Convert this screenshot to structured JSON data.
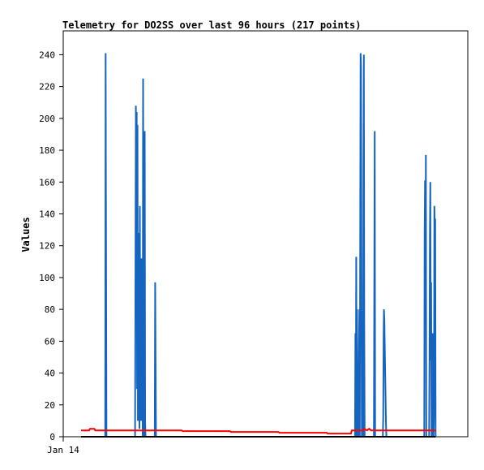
{
  "chart_data": {
    "type": "line",
    "title": "Telemetry for DO2SS over last 96 hours (217 points)",
    "xlabel": "",
    "ylabel": "Values",
    "x_tick_labels": [
      "Jan 14"
    ],
    "y_ticks": [
      0,
      20,
      40,
      60,
      80,
      100,
      120,
      140,
      160,
      180,
      200,
      220,
      240
    ],
    "ylim": [
      0,
      255
    ],
    "xlim": [
      0,
      96
    ],
    "grid": false,
    "legend": "none",
    "series": [
      {
        "color": "#1565c0",
        "style": "spikes",
        "points": [
          [
            6.0,
            0
          ],
          [
            6.1,
            241
          ],
          [
            6.2,
            120
          ],
          [
            6.3,
            0
          ],
          [
            13.4,
            0
          ],
          [
            13.5,
            105
          ],
          [
            13.6,
            208
          ],
          [
            13.7,
            95
          ],
          [
            13.8,
            204
          ],
          [
            13.9,
            30
          ],
          [
            14.0,
            196
          ],
          [
            14.1,
            10
          ],
          [
            14.2,
            128
          ],
          [
            14.3,
            20
          ],
          [
            14.4,
            112
          ],
          [
            14.5,
            5
          ],
          [
            14.6,
            145
          ],
          [
            14.7,
            40
          ],
          [
            14.8,
            112
          ],
          [
            14.9,
            10
          ],
          [
            15.0,
            96
          ],
          [
            15.1,
            20
          ],
          [
            15.2,
            112
          ],
          [
            15.3,
            0
          ],
          [
            15.4,
            225
          ],
          [
            15.5,
            96
          ],
          [
            15.6,
            112
          ],
          [
            15.7,
            0
          ],
          [
            15.8,
            192
          ],
          [
            15.9,
            10
          ],
          [
            16.0,
            0
          ],
          [
            18.3,
            0
          ],
          [
            18.4,
            97
          ],
          [
            18.5,
            48
          ],
          [
            18.6,
            0
          ],
          [
            68.0,
            0
          ],
          [
            68.1,
            65
          ],
          [
            68.2,
            5
          ],
          [
            68.3,
            113
          ],
          [
            68.4,
            0
          ],
          [
            68.5,
            80
          ],
          [
            68.6,
            3
          ],
          [
            68.8,
            0
          ],
          [
            69.0,
            57
          ],
          [
            69.1,
            80
          ],
          [
            69.2,
            0
          ],
          [
            69.3,
            121
          ],
          [
            69.4,
            241
          ],
          [
            69.5,
            232
          ],
          [
            69.6,
            113
          ],
          [
            69.7,
            0
          ],
          [
            70.0,
            0
          ],
          [
            70.1,
            169
          ],
          [
            70.2,
            240
          ],
          [
            70.3,
            73
          ],
          [
            70.4,
            0
          ],
          [
            72.7,
            0
          ],
          [
            72.8,
            96
          ],
          [
            72.9,
            192
          ],
          [
            73.0,
            0
          ],
          [
            74.9,
            0
          ],
          [
            75.0,
            12
          ],
          [
            75.1,
            64
          ],
          [
            75.2,
            80
          ],
          [
            75.3,
            73
          ],
          [
            75.4,
            56
          ],
          [
            75.5,
            40
          ],
          [
            75.6,
            24
          ],
          [
            75.7,
            8
          ],
          [
            75.8,
            0
          ],
          [
            85.2,
            0
          ],
          [
            85.3,
            128
          ],
          [
            85.4,
            161
          ],
          [
            85.5,
            88
          ],
          [
            85.6,
            177
          ],
          [
            85.7,
            0
          ],
          [
            86.4,
            0
          ],
          [
            86.5,
            48
          ],
          [
            86.6,
            128
          ],
          [
            86.7,
            160
          ],
          [
            86.8,
            48
          ],
          [
            86.9,
            97
          ],
          [
            87.0,
            0
          ],
          [
            87.2,
            0
          ],
          [
            87.3,
            65
          ],
          [
            87.4,
            20
          ],
          [
            87.5,
            0
          ],
          [
            87.6,
            16
          ],
          [
            87.7,
            145
          ],
          [
            87.8,
            128
          ],
          [
            87.9,
            137
          ],
          [
            88.0,
            0
          ]
        ]
      },
      {
        "color": "#ff0000",
        "style": "line",
        "points": [
          [
            0,
            4
          ],
          [
            2.0,
            4
          ],
          [
            2.2,
            5
          ],
          [
            3.3,
            5
          ],
          [
            3.5,
            4
          ],
          [
            12.0,
            4
          ],
          [
            25.0,
            4
          ],
          [
            25.2,
            3.5
          ],
          [
            37.0,
            3.5
          ],
          [
            37.2,
            3
          ],
          [
            49.0,
            3
          ],
          [
            49.2,
            2.5
          ],
          [
            61.0,
            2.5
          ],
          [
            61.2,
            2
          ],
          [
            67.0,
            2
          ],
          [
            67.2,
            4
          ],
          [
            70.0,
            4
          ],
          [
            70.2,
            5
          ],
          [
            71.0,
            4
          ],
          [
            71.5,
            5
          ],
          [
            72.0,
            4
          ],
          [
            88.0,
            4
          ]
        ]
      },
      {
        "color": "#000000",
        "style": "line",
        "points": [
          [
            0,
            0
          ],
          [
            88.0,
            0
          ]
        ]
      }
    ]
  }
}
